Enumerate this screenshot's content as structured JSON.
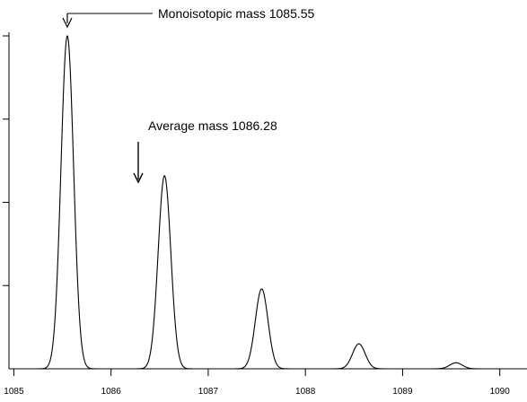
{
  "chart_data": {
    "type": "line",
    "title": "",
    "xlabel": "",
    "ylabel": "",
    "xlim": [
      1084.95,
      1090.28
    ],
    "ylim": [
      0,
      100
    ],
    "x_ticks": [
      1085,
      1086,
      1087,
      1088,
      1089,
      1090
    ],
    "x_tick_labels": [
      "1085",
      "1086",
      "1087",
      "1088",
      "1089",
      "1090"
    ],
    "y_ticks": [
      25,
      50,
      75,
      100
    ],
    "grid": false,
    "legend": "none",
    "peak_width_sigma": 0.065,
    "series": [
      {
        "peaks": [
          {
            "x": 1085.55,
            "y": 100
          },
          {
            "x": 1086.55,
            "y": 58
          },
          {
            "x": 1087.55,
            "y": 24
          },
          {
            "x": 1088.55,
            "y": 7.5
          },
          {
            "x": 1089.55,
            "y": 1.8
          }
        ]
      }
    ],
    "annotations": [
      {
        "text": "Monoisotopic mass 1085.55",
        "x": 1085.55,
        "style": "elbow-arrow"
      },
      {
        "text": "Average mass 1086.28",
        "x": 1086.28,
        "style": "down-arrow"
      }
    ]
  }
}
